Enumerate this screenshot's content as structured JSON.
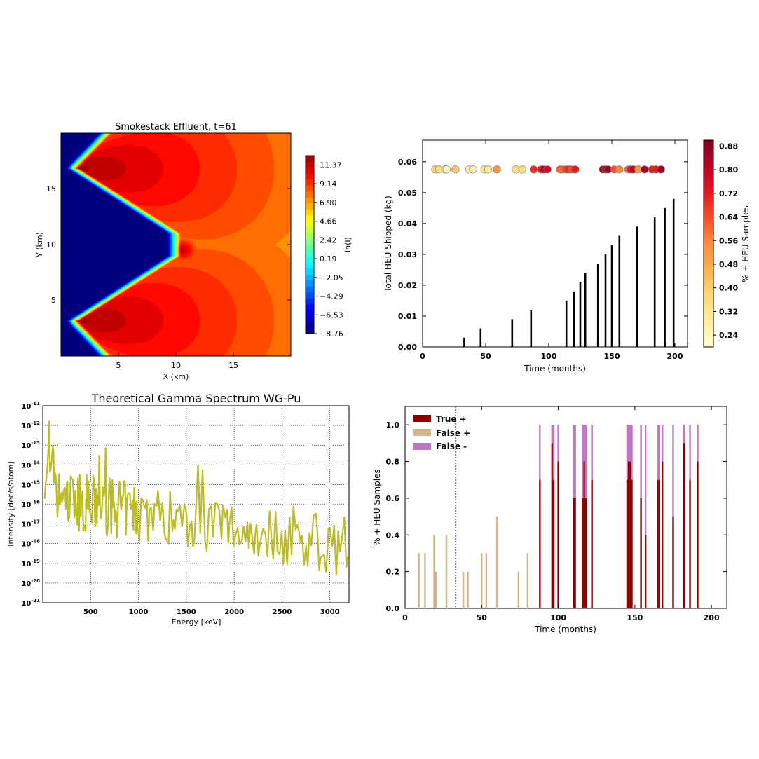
{
  "figure": {
    "background": "#ffffff"
  },
  "panels": {
    "smokestack": {
      "title": "Smokestack Effluent, t=61",
      "xlabel": "X (km)",
      "ylabel": "Y (km)",
      "xticks": [
        "5",
        "10",
        "15"
      ],
      "yticks": [
        "5",
        "10",
        "15"
      ],
      "colorbar_label": "ln(I)",
      "colorbar_ticks": [
        "11.37",
        "9.14",
        "6.90",
        "4.66",
        "2.42",
        "0.19",
        "−2.05",
        "−4.29",
        "−6.53",
        "−8.76"
      ]
    },
    "heu_shipped": {
      "xlabel": "Time (months)",
      "ylabel": "Total HEU Shipped (kg)",
      "xticks": [
        "0",
        "50",
        "100",
        "150",
        "200"
      ],
      "yticks": [
        "0.00",
        "0.01",
        "0.02",
        "0.03",
        "0.04",
        "0.05",
        "0.06"
      ],
      "colorbar_label": "% + HEU Samples",
      "colorbar_ticks": [
        "0.88",
        "0.80",
        "0.72",
        "0.64",
        "0.56",
        "0.48",
        "0.40",
        "0.32",
        "0.24"
      ]
    },
    "gamma": {
      "title": "Theoretical Gamma Spectrum WG-Pu",
      "xlabel": "Energy [keV]",
      "ylabel": "Intensity [dec/s/atom]",
      "xticks": [
        "500",
        "1000",
        "1500",
        "2000",
        "2500",
        "3000"
      ],
      "yticks_base": "10",
      "yticks_exp": [
        "-11",
        "-12",
        "-13",
        "-14",
        "-15",
        "-16",
        "-17",
        "-18",
        "-19",
        "-20",
        "-21"
      ]
    },
    "samples": {
      "xlabel": "Time (months)",
      "ylabel": "% + HEU Samples",
      "xticks": [
        "0",
        "50",
        "100",
        "150",
        "200"
      ],
      "yticks": [
        "0.0",
        "0.2",
        "0.4",
        "0.6",
        "0.8",
        "1.0"
      ],
      "legend": [
        "True  +",
        "False +",
        "False  -"
      ]
    }
  },
  "chart_data": [
    {
      "type": "heatmap",
      "title": "Smokestack Effluent, t=61",
      "xlabel": "X (km)",
      "ylabel": "Y (km)",
      "xlim": [
        0,
        20
      ],
      "ylim": [
        0,
        20
      ],
      "colorbar": {
        "label": "ln(I)",
        "min": -8.76,
        "max": 12.5,
        "colormap": "jet"
      },
      "sources": [
        {
          "x": 1.5,
          "y": 16.8,
          "peak": 12.0
        },
        {
          "x": 10.5,
          "y": 9.5,
          "peak": 12.0
        },
        {
          "x": 1.5,
          "y": 3.2,
          "peak": 12.0
        }
      ]
    },
    {
      "type": "bar",
      "xlabel": "Time (months)",
      "ylabel": "Total HEU Shipped (kg)",
      "xlim": [
        0,
        210
      ],
      "ylim": [
        0,
        0.067
      ],
      "x": [
        33,
        46,
        71,
        86,
        114,
        120,
        125,
        129,
        139,
        145,
        150,
        156,
        170,
        184,
        192,
        199
      ],
      "values": [
        0.003,
        0.006,
        0.009,
        0.012,
        0.015,
        0.018,
        0.021,
        0.024,
        0.027,
        0.03,
        0.033,
        0.036,
        0.039,
        0.042,
        0.045,
        0.048
      ],
      "scatter": {
        "y": 0.0575,
        "x": [
          10,
          13,
          18,
          19,
          26,
          37,
          40,
          49,
          52,
          59,
          74,
          79,
          88,
          94,
          96,
          99,
          109,
          111,
          114,
          116,
          118,
          121,
          143,
          145,
          147,
          152,
          156,
          163,
          165,
          167,
          171,
          176,
          182,
          185,
          189
        ],
        "value": [
          0.38,
          0.36,
          0.32,
          0.26,
          0.42,
          0.3,
          0.26,
          0.32,
          0.3,
          0.52,
          0.34,
          0.36,
          0.7,
          0.72,
          0.8,
          0.76,
          0.62,
          0.6,
          0.66,
          0.7,
          0.64,
          0.72,
          0.84,
          0.8,
          0.88,
          0.64,
          0.56,
          0.6,
          0.72,
          0.8,
          0.52,
          0.84,
          0.72,
          0.72,
          0.84
        ]
      },
      "colorbar": {
        "label": "% + HEU Samples",
        "min": 0.2,
        "max": 0.9,
        "colormap": "YlOrRd"
      }
    },
    {
      "type": "line",
      "title": "Theoretical Gamma Spectrum WG-Pu",
      "xlabel": "Energy [keV]",
      "ylabel": "Intensity [dec/s/atom]",
      "xlim": [
        0,
        3200
      ],
      "ylim_exponent": [
        -21,
        -11
      ],
      "yscale": "log",
      "color": "#bcbd22",
      "series_note_seed": 7
    },
    {
      "type": "bar",
      "xlabel": "Time (months)",
      "ylabel": "% + HEU Samples",
      "xlim": [
        0,
        210
      ],
      "ylim": [
        0,
        1.1
      ],
      "threshold_x": 33,
      "series": [
        {
          "name": "True  +",
          "color": "#8b0000",
          "x": [
            88,
            96,
            97,
            100,
            110,
            111,
            116,
            117,
            118,
            122,
            145,
            146,
            147,
            148,
            154,
            157,
            165,
            166,
            168,
            175,
            182,
            186,
            191
          ],
          "values": [
            0.7,
            0.9,
            0.7,
            0.8,
            0.6,
            0.6,
            0.6,
            0.8,
            0.6,
            0.7,
            0.7,
            0.8,
            0.8,
            0.7,
            0.6,
            0.4,
            0.7,
            0.7,
            0.8,
            0.5,
            0.9,
            0.7,
            0.8
          ]
        },
        {
          "name": "False +",
          "color": "#d2b48c",
          "x": [
            9,
            13,
            19,
            20,
            27,
            38,
            41,
            50,
            53,
            60,
            74,
            80
          ],
          "values": [
            0.3,
            0.3,
            0.4,
            0.2,
            0.4,
            0.2,
            0.2,
            0.3,
            0.3,
            0.5,
            0.2,
            0.3
          ]
        },
        {
          "name": "False  -",
          "color": "#bf77c5",
          "x": [
            88,
            96,
            97,
            100,
            110,
            111,
            116,
            117,
            118,
            122,
            145,
            146,
            147,
            148,
            154,
            157,
            165,
            166,
            168,
            175,
            182,
            186,
            191
          ],
          "values": [
            0.3,
            0.1,
            0.3,
            0.2,
            0.4,
            0.4,
            0.4,
            0.2,
            0.4,
            0.3,
            0.3,
            0.2,
            0.2,
            0.3,
            0.4,
            0.6,
            0.3,
            0.3,
            0.2,
            0.5,
            0.1,
            0.3,
            0.2
          ]
        }
      ]
    }
  ]
}
